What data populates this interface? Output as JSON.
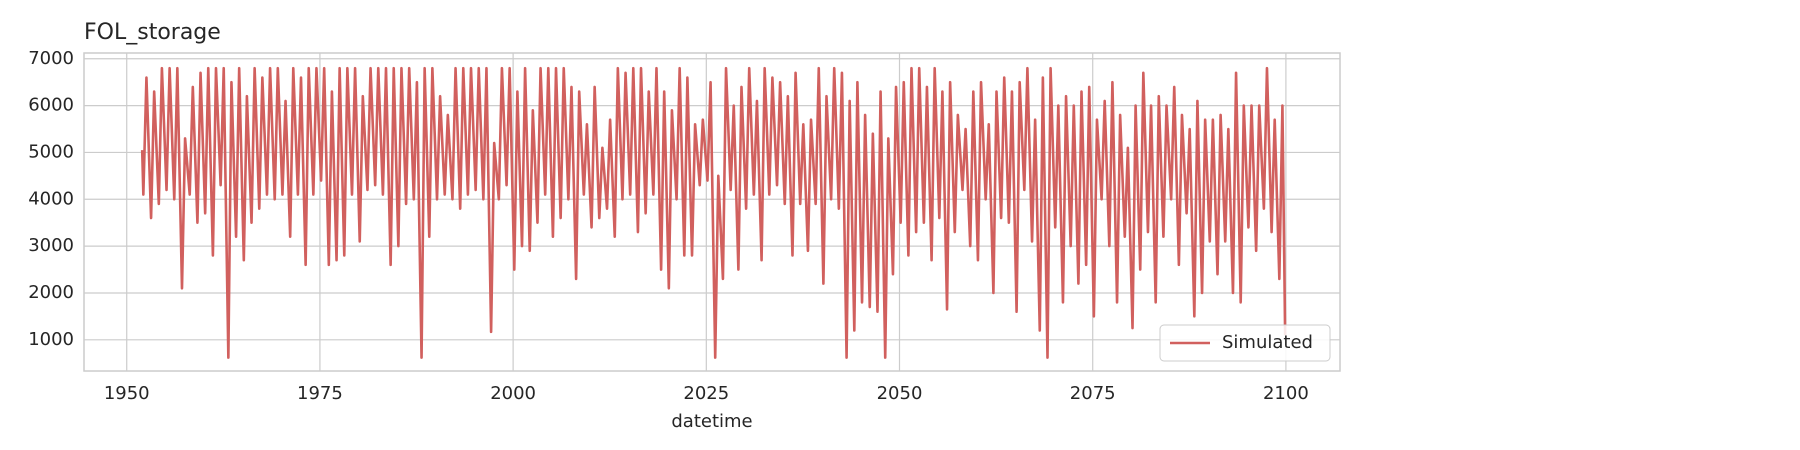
{
  "chart_data": {
    "type": "line",
    "title": "FOL_storage",
    "xlabel": "datetime",
    "xlim": [
      1944.47,
      2107.0
    ],
    "ylim": [
      334,
      7123
    ],
    "xticks": [
      1950,
      1975,
      2000,
      2025,
      2050,
      2075,
      2100
    ],
    "yticks": [
      1000,
      2000,
      3000,
      4000,
      5000,
      6000,
      7000
    ],
    "grid": true,
    "legend": "lower right",
    "x": [
      1952.0,
      1952.15,
      1952.55,
      1953.15,
      1953.55,
      1954.15,
      1954.55,
      1955.15,
      1955.55,
      1956.15,
      1956.55,
      1957.15,
      1957.55,
      1958.15,
      1958.55,
      1959.15,
      1959.55,
      1960.15,
      1960.55,
      1961.15,
      1961.55,
      1962.15,
      1962.55,
      1963.15,
      1963.55,
      1964.15,
      1964.55,
      1965.15,
      1965.55,
      1966.15,
      1966.55,
      1967.15,
      1967.55,
      1968.15,
      1968.55,
      1969.15,
      1969.55,
      1970.15,
      1970.55,
      1971.15,
      1971.55,
      1972.15,
      1972.55,
      1973.15,
      1973.55,
      1974.15,
      1974.55,
      1975.15,
      1975.55,
      1976.15,
      1976.55,
      1977.15,
      1977.55,
      1978.15,
      1978.55,
      1979.15,
      1979.55,
      1980.15,
      1980.55,
      1981.15,
      1981.55,
      1982.15,
      1982.55,
      1983.15,
      1983.55,
      1984.15,
      1984.55,
      1985.15,
      1985.55,
      1986.15,
      1986.55,
      1987.15,
      1987.55,
      1988.15,
      1988.55,
      1989.15,
      1989.55,
      1990.15,
      1990.55,
      1991.15,
      1991.55,
      1992.15,
      1992.55,
      1993.15,
      1993.55,
      1994.15,
      1994.55,
      1995.15,
      1995.55,
      1996.15,
      1996.55,
      1997.15,
      1997.55,
      1998.15,
      1998.55,
      1999.15,
      1999.55,
      2000.15,
      2000.55,
      2001.15,
      2001.55,
      2002.15,
      2002.55,
      2003.15,
      2003.55,
      2004.15,
      2004.55,
      2005.15,
      2005.55,
      2006.15,
      2006.55,
      2007.15,
      2007.55,
      2008.15,
      2008.55,
      2009.15,
      2009.55,
      2010.15,
      2010.55,
      2011.15,
      2011.55,
      2012.15,
      2012.55,
      2013.15,
      2013.55,
      2014.15,
      2014.55,
      2015.15,
      2015.55,
      2016.15,
      2016.55,
      2017.15,
      2017.55,
      2018.15,
      2018.55,
      2019.15,
      2019.55,
      2020.15,
      2020.55,
      2021.15,
      2021.55,
      2022.15,
      2022.55,
      2023.15,
      2023.55,
      2024.15,
      2024.55,
      2025.15,
      2025.55,
      2026.15,
      2026.55,
      2027.15,
      2027.55,
      2028.15,
      2028.55,
      2029.15,
      2029.55,
      2030.15,
      2030.55,
      2031.15,
      2031.55,
      2032.15,
      2032.55,
      2033.15,
      2033.55,
      2034.15,
      2034.55,
      2035.15,
      2035.55,
      2036.15,
      2036.55,
      2037.15,
      2037.55,
      2038.15,
      2038.55,
      2039.15,
      2039.55,
      2040.15,
      2040.55,
      2041.15,
      2041.55,
      2042.15,
      2042.55,
      2043.15,
      2043.55,
      2044.15,
      2044.55,
      2045.15,
      2045.55,
      2046.15,
      2046.55,
      2047.15,
      2047.55,
      2048.15,
      2048.55,
      2049.15,
      2049.55,
      2050.15,
      2050.55,
      2051.15,
      2051.55,
      2052.15,
      2052.55,
      2053.15,
      2053.55,
      2054.15,
      2054.55,
      2055.15,
      2055.55,
      2056.15,
      2056.55,
      2057.15,
      2057.55,
      2058.15,
      2058.55,
      2059.15,
      2059.55,
      2060.15,
      2060.55,
      2061.15,
      2061.55,
      2062.15,
      2062.55,
      2063.15,
      2063.55,
      2064.15,
      2064.55,
      2065.15,
      2065.55,
      2066.15,
      2066.55,
      2067.15,
      2067.55,
      2068.15,
      2068.55,
      2069.15,
      2069.55,
      2070.15,
      2070.55,
      2071.15,
      2071.55,
      2072.15,
      2072.55,
      2073.15,
      2073.55,
      2074.15,
      2074.55,
      2075.15,
      2075.55,
      2076.15,
      2076.55,
      2077.15,
      2077.55,
      2078.15,
      2078.55,
      2079.15,
      2079.55,
      2080.15,
      2080.55,
      2081.15,
      2081.55,
      2082.15,
      2082.55,
      2083.15,
      2083.55,
      2084.15,
      2084.55,
      2085.15,
      2085.55,
      2086.15,
      2086.55,
      2087.15,
      2087.55,
      2088.15,
      2088.55,
      2089.15,
      2089.55,
      2090.15,
      2090.55,
      2091.15,
      2091.55,
      2092.15,
      2092.55,
      2093.15,
      2093.55,
      2094.15,
      2094.55,
      2095.15,
      2095.55,
      2096.15,
      2096.55,
      2097.15,
      2097.55,
      2098.15,
      2098.55,
      2099.15,
      2099.55,
      2099.9
    ],
    "series": [
      {
        "name": "Simulated",
        "color": "#d1605e",
        "values": [
          5050,
          4100,
          6600,
          3600,
          6300,
          3900,
          6800,
          4200,
          6800,
          4000,
          6800,
          2100,
          5300,
          4100,
          6400,
          3500,
          6700,
          3700,
          6800,
          2800,
          6800,
          4300,
          6800,
          620,
          6500,
          3200,
          6800,
          2700,
          6200,
          3500,
          6800,
          3800,
          6600,
          4100,
          6800,
          4000,
          6800,
          4100,
          6100,
          3200,
          6800,
          4100,
          6600,
          2600,
          6800,
          4100,
          6800,
          4400,
          6800,
          2600,
          6300,
          2700,
          6800,
          2800,
          6800,
          4100,
          6800,
          3100,
          6200,
          4200,
          6800,
          4300,
          6800,
          4100,
          6800,
          2600,
          6800,
          3000,
          6800,
          3900,
          6800,
          4000,
          6500,
          620,
          6800,
          3200,
          6800,
          4000,
          6200,
          4100,
          5800,
          4000,
          6800,
          3800,
          6800,
          4100,
          6800,
          4200,
          6800,
          4000,
          6800,
          1170,
          5200,
          4000,
          6800,
          4300,
          6800,
          2500,
          6300,
          3000,
          6800,
          2900,
          5900,
          3500,
          6800,
          4100,
          6800,
          3200,
          6800,
          3600,
          6800,
          4000,
          6400,
          2300,
          6300,
          4100,
          5600,
          3400,
          6400,
          3600,
          5100,
          3800,
          5700,
          3200,
          6800,
          4000,
          6700,
          4100,
          6800,
          3300,
          6800,
          3700,
          6300,
          4100,
          6800,
          2500,
          6300,
          2100,
          5900,
          4000,
          6800,
          2800,
          6600,
          2800,
          5600,
          4300,
          5700,
          4400,
          6500,
          620,
          4500,
          2300,
          6800,
          4200,
          6000,
          2500,
          6400,
          3800,
          6800,
          4100,
          6100,
          2700,
          6800,
          4100,
          6600,
          4300,
          6500,
          3900,
          6200,
          2800,
          6700,
          3900,
          5600,
          2900,
          5700,
          3900,
          6800,
          2200,
          6200,
          4000,
          6800,
          3800,
          6700,
          620,
          6100,
          1200,
          6500,
          1800,
          5800,
          1700,
          5400,
          1600,
          6300,
          620,
          5300,
          2400,
          6400,
          3500,
          6500,
          2800,
          6800,
          3300,
          6800,
          3500,
          6400,
          2700,
          6800,
          3600,
          6300,
          1650,
          6500,
          3300,
          5800,
          4200,
          5500,
          3000,
          6300,
          2700,
          6500,
          4000,
          5600,
          2000,
          6300,
          3600,
          6600,
          3500,
          6300,
          1600,
          6500,
          4200,
          6800,
          3100,
          5700,
          1200,
          6600,
          620,
          6800,
          3400,
          6000,
          1800,
          6200,
          3000,
          6000,
          2200,
          6300,
          2600,
          6400,
          1500,
          5700,
          4000,
          6100,
          3000,
          6500,
          1800,
          5800,
          3200,
          5100,
          1250,
          6000,
          2500,
          6700,
          3300,
          6000,
          1800,
          6200,
          3200,
          6000,
          4000,
          6400,
          2600,
          5800,
          3700,
          5500,
          1500,
          6100,
          2000,
          5700,
          3100,
          5700,
          2400,
          5800,
          3100,
          5500,
          2000,
          6700,
          1800,
          6000,
          3400,
          6000,
          2900,
          6000,
          3800,
          6800,
          3300,
          5700,
          2300,
          6000,
          1100
        ]
      }
    ]
  }
}
